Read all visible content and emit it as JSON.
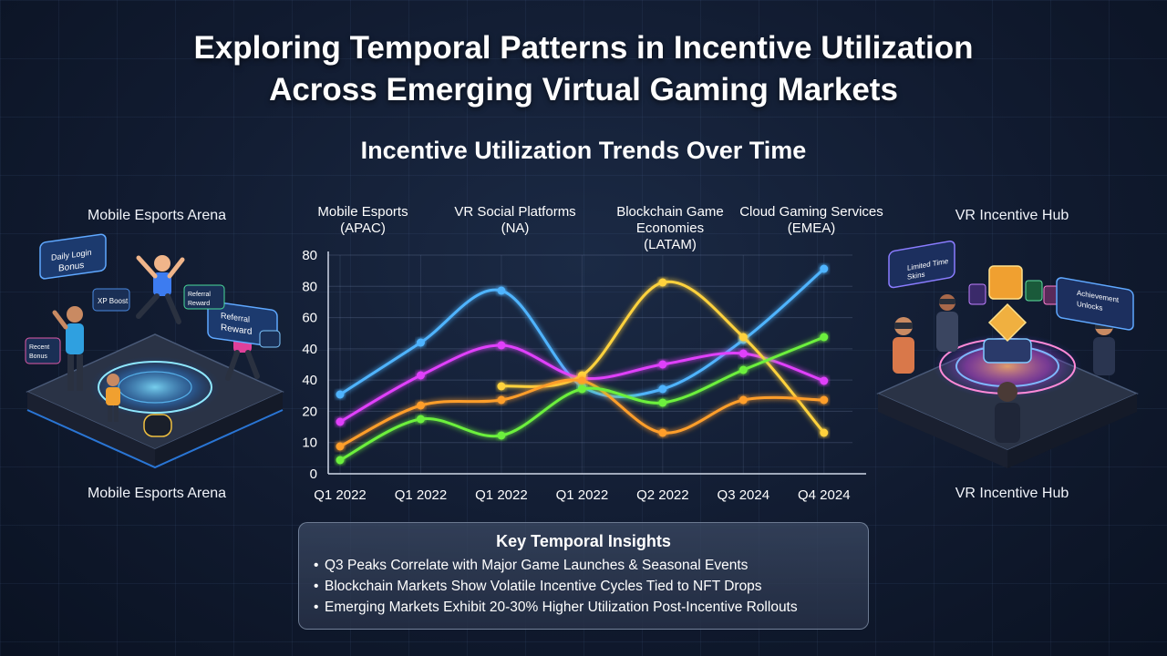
{
  "page": {
    "title_line1": "Exploring Temporal Patterns in Incentive Utilization",
    "title_line2": "Across Emerging Virtual Gaming Markets",
    "subtitle": "Incentive Utilization Trends Over Time"
  },
  "left_scene": {
    "top_label": "Mobile Esports Arena",
    "bottom_label": "Mobile Esports Arena",
    "cards": [
      {
        "label": "Daily Login Bonus"
      },
      {
        "label": "Referral Reward"
      },
      {
        "label": "XP Boost"
      },
      {
        "label": "Referral Reward"
      },
      {
        "label": "Recent Bonus"
      }
    ]
  },
  "right_scene": {
    "top_label": "VR Incentive Hub",
    "bottom_label": "VR Incentive Hub",
    "cards": [
      {
        "label": "Limited Time Skins"
      },
      {
        "label": "Achievement Unlocks"
      }
    ]
  },
  "colors": {
    "blue": "#4fb4ff",
    "magenta": "#e040fb",
    "yellow": "#ffd23c",
    "orange": "#ff9e2c",
    "green": "#6cf03c"
  },
  "chart_data": {
    "type": "line",
    "title": "Incentive Utilization Trends Over Time",
    "categories": [
      "Q1 2022",
      "Q1 2022",
      "Q1 2022",
      "Q1 2022",
      "Q2 2022",
      "Q3 2024",
      "Q4 2024"
    ],
    "y_ticks": [
      "0",
      "10",
      "20",
      "40",
      "40",
      "60",
      "80",
      "80"
    ],
    "ylim": [
      0,
      80
    ],
    "grid": true,
    "series": [
      {
        "color": "#4fb4ff",
        "values": [
          29,
          48,
          67,
          32,
          31,
          49,
          75
        ]
      },
      {
        "color": "#e040fb",
        "values": [
          19,
          36,
          47,
          35,
          40,
          44,
          34
        ]
      },
      {
        "color": "#ffd23c",
        "values": [
          null,
          null,
          32,
          36,
          70,
          50,
          15
        ]
      },
      {
        "color": "#ff9e2c",
        "values": [
          10,
          25,
          27,
          34,
          15,
          27,
          27
        ]
      },
      {
        "color": "#6cf03c",
        "values": [
          5,
          20,
          14,
          31,
          26,
          38,
          50
        ]
      }
    ],
    "annotations": [
      {
        "text": "Mobile Esports (APAC)",
        "category_index": 0
      },
      {
        "text": "VR Social Platforms (NA)",
        "category_index": 2
      },
      {
        "text": "Blockchain Game Economies (LATAM)",
        "category_index": 4
      },
      {
        "text": "Cloud Gaming Services (EMEA)",
        "category_index": 6
      }
    ],
    "annotation_lines": [
      [
        "Mobile Esports",
        "(APAC)"
      ],
      [
        "VR Social Platforms",
        "(NA)"
      ],
      [
        "Blockchain Game",
        "Economies",
        "(LATAM)"
      ],
      [
        "Cloud Gaming Services",
        "(EMEA)"
      ]
    ]
  },
  "insights": {
    "heading": "Key Temporal Insights",
    "items": [
      "Q3 Peaks Correlate with Major Game Launches & Seasonal Events",
      "Blockchain Markets Show Volatile Incentive Cycles Tied to NFT Drops",
      "Emerging Markets Exhibit 20-30% Higher Utilization Post-Incentive Rollouts"
    ]
  }
}
